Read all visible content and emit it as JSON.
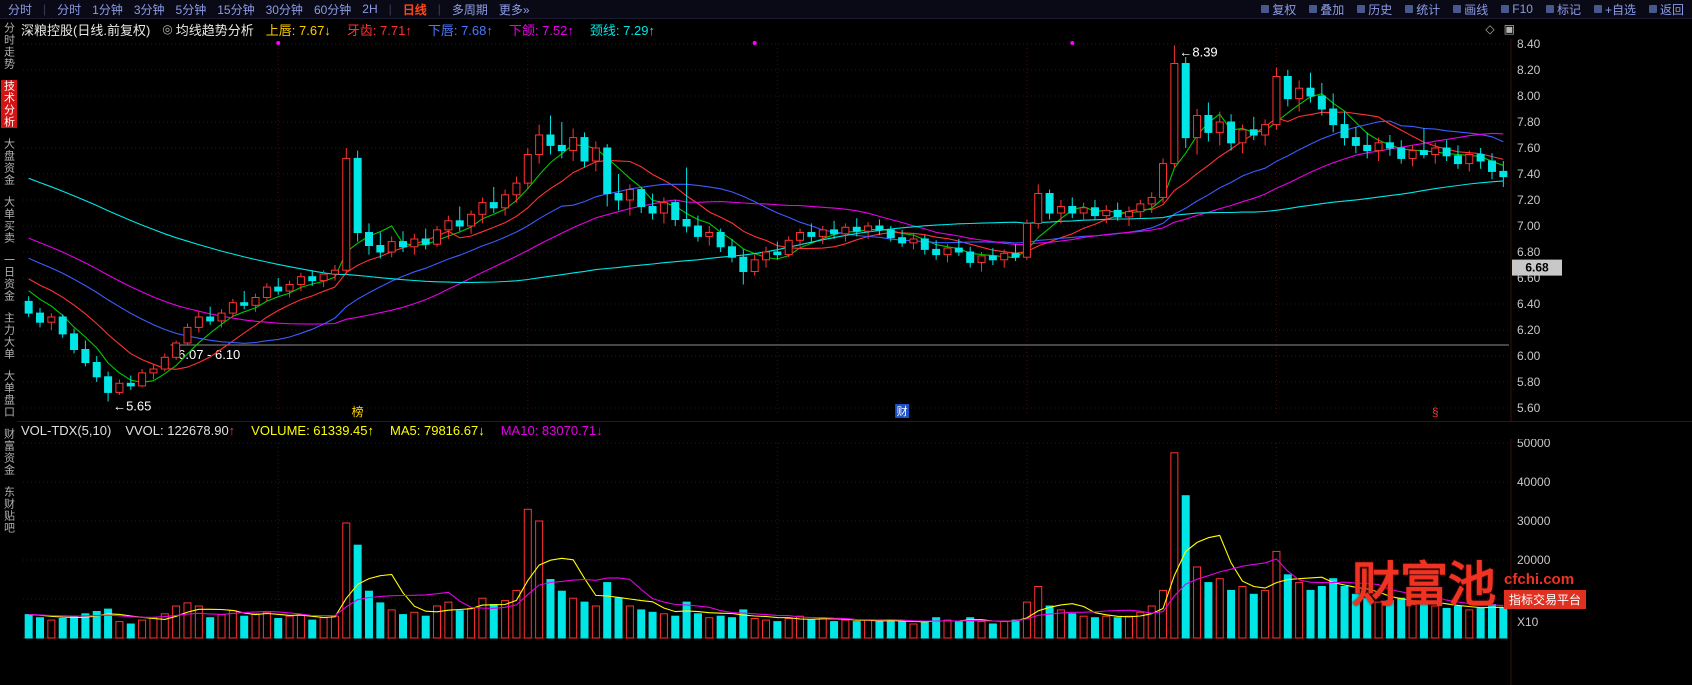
{
  "topbar": {
    "periods": [
      {
        "label": "分时",
        "sep_after": true
      },
      {
        "label": "分时"
      },
      {
        "label": "1分钟"
      },
      {
        "label": "3分钟"
      },
      {
        "label": "5分钟"
      },
      {
        "label": "15分钟"
      },
      {
        "label": "30分钟"
      },
      {
        "label": "60分钟"
      },
      {
        "label": "2H",
        "sep_after": true
      },
      {
        "label": "日线",
        "active": true,
        "sep_after": true
      },
      {
        "label": "多周期"
      },
      {
        "label": "更多»"
      }
    ],
    "actions": [
      "复权",
      "叠加",
      "历史",
      "统计",
      "画线",
      "F10",
      "标记",
      "+自选",
      "返回"
    ]
  },
  "sidebar": {
    "items": [
      {
        "label": "分时走势"
      },
      {
        "label": "技术分析",
        "active": true
      },
      {
        "label": "大盘资金"
      },
      {
        "label": "大单买卖"
      },
      {
        "label": "一日资金"
      },
      {
        "label": "主力大单"
      },
      {
        "label": "大单盘口"
      },
      {
        "label": "财富资金"
      },
      {
        "label": "东财贴吧"
      }
    ]
  },
  "chart_header": {
    "title": "深粮控股(日线.前复权)",
    "indicator_icon": "◎",
    "indicator_name": "均线趋势分析",
    "values": [
      {
        "label": "上唇:",
        "value": "7.67",
        "arrow": "↓",
        "color": "#ffcc00"
      },
      {
        "label": "牙齿:",
        "value": "7.71",
        "arrow": "↑",
        "color": "#ff3232"
      },
      {
        "label": "下唇:",
        "value": "7.68",
        "arrow": "↑",
        "color": "#4d79ff"
      },
      {
        "label": "下颌:",
        "value": "7.52",
        "arrow": "↑",
        "color": "#e600e6"
      },
      {
        "label": "颈线:",
        "value": "7.29",
        "arrow": "↑",
        "color": "#00e6e6"
      }
    ],
    "corner_icons": [
      "◇",
      "▣"
    ]
  },
  "volume_header": {
    "name": "VOL-TDX(5,10)",
    "values": [
      {
        "label": "VVOL:",
        "value": "122678.90",
        "arrow": "↑",
        "color": "#e0e0e0",
        "arrow_color": "#ff3232"
      },
      {
        "label": "VOLUME:",
        "value": "61339.45",
        "arrow": "↑",
        "color": "#ffff00"
      },
      {
        "label": "MA5:",
        "value": "79816.67",
        "arrow": "↓",
        "color": "#ffff00"
      },
      {
        "label": "MA10:",
        "value": "83070.71",
        "arrow": "↓",
        "color": "#e600e6"
      }
    ]
  },
  "watermark": {
    "brand": "财富池",
    "site": "cfchi.com",
    "tagline": "指标交易平台"
  },
  "chart_data": {
    "type": "candlestick+volume",
    "title": "深粮控股 日线 前复权",
    "price_axis": {
      "min": 5.6,
      "max": 8.4,
      "step": 0.2
    },
    "volume_axis": {
      "max": 50000,
      "step": 10000,
      "unit": "X10"
    },
    "colors": {
      "up": "#ff3232",
      "down": "#00e6e6",
      "grid": "#3c1212",
      "axis_text": "#c8c8c8",
      "level_line": "#8c8c8c",
      "badge_bg": "#c8c8c8",
      "badge_text": "#000000"
    },
    "price_mas": [
      {
        "window": 5,
        "color": "#00c800"
      },
      {
        "window": 10,
        "color": "#ff3232"
      },
      {
        "window": 20,
        "color": "#3c5cff"
      },
      {
        "window": 30,
        "color": "#e600e6"
      },
      {
        "window": 60,
        "color": "#00e6e6"
      }
    ],
    "vol_mas": [
      {
        "window": 5,
        "color": "#ffff00"
      },
      {
        "window": 10,
        "color": "#e600e6"
      }
    ],
    "ma_seed": {
      "start": 8.3,
      "end": 6.5,
      "days": 60
    },
    "vol_seed": 6000,
    "grid_day_interval": 22,
    "annotations": {
      "high": {
        "day": 101,
        "text": "←8.39"
      },
      "low": {
        "day": 7,
        "text": "←5.65"
      },
      "level_line": {
        "from_day": 13,
        "price": 6.085,
        "label": "6.07 - 6.10"
      },
      "price_badge": "6.68",
      "price_badge_value": 6.68
    },
    "event_markers": [
      {
        "day": 29,
        "label": "榜",
        "style": "yellow"
      },
      {
        "day": 77,
        "label": "财",
        "style": "blue-badge"
      },
      {
        "day": 124,
        "label": "§",
        "style": "red"
      }
    ],
    "top_dots": {
      "days": [
        22,
        64,
        92
      ],
      "color": "#ff00ff"
    },
    "candles": [
      [
        6.42,
        6.46,
        6.3,
        6.33
      ],
      [
        6.33,
        6.37,
        6.22,
        6.26
      ],
      [
        6.26,
        6.33,
        6.2,
        6.3
      ],
      [
        6.3,
        6.32,
        6.14,
        6.17
      ],
      [
        6.17,
        6.21,
        6.02,
        6.05
      ],
      [
        6.05,
        6.12,
        5.92,
        5.95
      ],
      [
        5.95,
        6.0,
        5.8,
        5.84
      ],
      [
        5.84,
        5.88,
        5.65,
        5.72
      ],
      [
        5.72,
        5.82,
        5.7,
        5.79
      ],
      [
        5.79,
        5.85,
        5.74,
        5.77
      ],
      [
        5.77,
        5.9,
        5.76,
        5.87
      ],
      [
        5.87,
        5.94,
        5.82,
        5.9
      ],
      [
        5.9,
        6.02,
        5.88,
        5.99
      ],
      [
        5.99,
        6.12,
        5.97,
        6.1
      ],
      [
        6.1,
        6.25,
        6.08,
        6.22
      ],
      [
        6.22,
        6.34,
        6.18,
        6.3
      ],
      [
        6.3,
        6.38,
        6.24,
        6.27
      ],
      [
        6.27,
        6.36,
        6.22,
        6.33
      ],
      [
        6.33,
        6.44,
        6.3,
        6.41
      ],
      [
        6.41,
        6.5,
        6.36,
        6.39
      ],
      [
        6.39,
        6.48,
        6.34,
        6.45
      ],
      [
        6.45,
        6.56,
        6.42,
        6.53
      ],
      [
        6.53,
        6.6,
        6.47,
        6.5
      ],
      [
        6.5,
        6.58,
        6.45,
        6.55
      ],
      [
        6.55,
        6.64,
        6.5,
        6.61
      ],
      [
        6.61,
        6.66,
        6.54,
        6.58
      ],
      [
        6.58,
        6.66,
        6.53,
        6.63
      ],
      [
        6.63,
        6.7,
        6.58,
        6.66
      ],
      [
        6.66,
        7.6,
        6.62,
        7.52
      ],
      [
        7.52,
        7.58,
        6.88,
        6.95
      ],
      [
        6.95,
        7.02,
        6.78,
        6.85
      ],
      [
        6.85,
        6.95,
        6.75,
        6.8
      ],
      [
        6.8,
        6.92,
        6.76,
        6.88
      ],
      [
        6.88,
        6.96,
        6.8,
        6.84
      ],
      [
        6.84,
        6.94,
        6.78,
        6.9
      ],
      [
        6.9,
        6.98,
        6.82,
        6.86
      ],
      [
        6.86,
        7.0,
        6.84,
        6.97
      ],
      [
        6.97,
        7.08,
        6.9,
        7.04
      ],
      [
        7.04,
        7.15,
        6.96,
        7.0
      ],
      [
        7.0,
        7.12,
        6.94,
        7.09
      ],
      [
        7.09,
        7.22,
        7.02,
        7.18
      ],
      [
        7.18,
        7.3,
        7.1,
        7.14
      ],
      [
        7.14,
        7.28,
        7.08,
        7.24
      ],
      [
        7.24,
        7.38,
        7.18,
        7.33
      ],
      [
        7.33,
        7.6,
        7.28,
        7.55
      ],
      [
        7.55,
        7.78,
        7.48,
        7.7
      ],
      [
        7.7,
        7.85,
        7.55,
        7.62
      ],
      [
        7.62,
        7.8,
        7.52,
        7.58
      ],
      [
        7.58,
        7.75,
        7.5,
        7.68
      ],
      [
        7.68,
        7.72,
        7.45,
        7.5
      ],
      [
        7.5,
        7.65,
        7.42,
        7.6
      ],
      [
        7.6,
        7.63,
        7.15,
        7.25
      ],
      [
        7.25,
        7.4,
        7.12,
        7.2
      ],
      [
        7.2,
        7.32,
        7.08,
        7.28
      ],
      [
        7.28,
        7.3,
        7.1,
        7.15
      ],
      [
        7.15,
        7.25,
        7.05,
        7.1
      ],
      [
        7.1,
        7.22,
        7.02,
        7.18
      ],
      [
        7.18,
        7.2,
        7.0,
        7.05
      ],
      [
        7.05,
        7.45,
        6.95,
        7.0
      ],
      [
        7.0,
        7.08,
        6.88,
        6.92
      ],
      [
        6.92,
        7.0,
        6.85,
        6.95
      ],
      [
        6.95,
        6.98,
        6.8,
        6.84
      ],
      [
        6.84,
        6.9,
        6.72,
        6.76
      ],
      [
        6.76,
        6.82,
        6.55,
        6.65
      ],
      [
        6.65,
        6.78,
        6.62,
        6.74
      ],
      [
        6.74,
        6.84,
        6.68,
        6.8
      ],
      [
        6.8,
        6.88,
        6.74,
        6.78
      ],
      [
        6.78,
        6.92,
        6.76,
        6.89
      ],
      [
        6.89,
        6.98,
        6.84,
        6.95
      ],
      [
        6.95,
        7.02,
        6.88,
        6.92
      ],
      [
        6.92,
        7.0,
        6.86,
        6.97
      ],
      [
        6.97,
        7.04,
        6.9,
        6.94
      ],
      [
        6.94,
        7.02,
        6.88,
        6.99
      ],
      [
        6.99,
        7.06,
        6.92,
        6.96
      ],
      [
        6.96,
        7.03,
        6.9,
        7.0
      ],
      [
        7.0,
        7.05,
        6.93,
        6.97
      ],
      [
        6.97,
        7.0,
        6.88,
        6.91
      ],
      [
        6.91,
        6.97,
        6.84,
        6.87
      ],
      [
        6.87,
        6.94,
        6.82,
        6.9
      ],
      [
        6.9,
        6.93,
        6.78,
        6.82
      ],
      [
        6.82,
        6.89,
        6.74,
        6.78
      ],
      [
        6.78,
        6.86,
        6.72,
        6.83
      ],
      [
        6.83,
        6.9,
        6.77,
        6.8
      ],
      [
        6.8,
        6.84,
        6.68,
        6.72
      ],
      [
        6.72,
        6.8,
        6.65,
        6.77
      ],
      [
        6.77,
        6.83,
        6.7,
        6.74
      ],
      [
        6.74,
        6.82,
        6.68,
        6.79
      ],
      [
        6.79,
        6.86,
        6.73,
        6.76
      ],
      [
        6.76,
        7.05,
        6.74,
        7.02
      ],
      [
        7.02,
        7.32,
        6.98,
        7.25
      ],
      [
        7.25,
        7.28,
        7.05,
        7.1
      ],
      [
        7.1,
        7.2,
        7.02,
        7.15
      ],
      [
        7.15,
        7.22,
        7.06,
        7.1
      ],
      [
        7.1,
        7.18,
        7.04,
        7.14
      ],
      [
        7.14,
        7.2,
        7.05,
        7.08
      ],
      [
        7.08,
        7.16,
        7.02,
        7.12
      ],
      [
        7.12,
        7.18,
        7.04,
        7.07
      ],
      [
        7.07,
        7.15,
        7.0,
        7.11
      ],
      [
        7.11,
        7.2,
        7.06,
        7.17
      ],
      [
        7.17,
        7.26,
        7.1,
        7.22
      ],
      [
        7.22,
        7.52,
        7.18,
        7.48
      ],
      [
        7.48,
        8.39,
        7.45,
        8.25
      ],
      [
        8.25,
        8.3,
        7.6,
        7.68
      ],
      [
        7.68,
        7.9,
        7.55,
        7.85
      ],
      [
        7.85,
        7.95,
        7.65,
        7.72
      ],
      [
        7.72,
        7.88,
        7.62,
        7.8
      ],
      [
        7.8,
        7.86,
        7.58,
        7.64
      ],
      [
        7.64,
        7.78,
        7.56,
        7.74
      ],
      [
        7.74,
        7.84,
        7.66,
        7.7
      ],
      [
        7.7,
        7.82,
        7.62,
        7.78
      ],
      [
        7.78,
        8.22,
        7.74,
        8.15
      ],
      [
        8.15,
        8.2,
        7.92,
        7.98
      ],
      [
        7.98,
        8.12,
        7.88,
        8.06
      ],
      [
        8.06,
        8.18,
        7.95,
        8.0
      ],
      [
        8.0,
        8.1,
        7.85,
        7.9
      ],
      [
        7.9,
        8.02,
        7.72,
        7.78
      ],
      [
        7.78,
        7.88,
        7.62,
        7.68
      ],
      [
        7.68,
        7.76,
        7.56,
        7.62
      ],
      [
        7.62,
        7.72,
        7.52,
        7.58
      ],
      [
        7.58,
        7.68,
        7.5,
        7.64
      ],
      [
        7.64,
        7.7,
        7.54,
        7.6
      ],
      [
        7.6,
        7.66,
        7.48,
        7.52
      ],
      [
        7.52,
        7.62,
        7.46,
        7.58
      ],
      [
        7.58,
        7.75,
        7.52,
        7.55
      ],
      [
        7.55,
        7.64,
        7.48,
        7.6
      ],
      [
        7.6,
        7.66,
        7.5,
        7.54
      ],
      [
        7.54,
        7.62,
        7.44,
        7.48
      ],
      [
        7.48,
        7.58,
        7.42,
        7.55
      ],
      [
        7.55,
        7.6,
        7.44,
        7.5
      ],
      [
        7.5,
        7.56,
        7.36,
        7.42
      ],
      [
        7.42,
        7.5,
        7.3,
        7.38
      ]
    ],
    "volumes": [
      6000,
      5200,
      4600,
      5000,
      5600,
      6200,
      6800,
      7400,
      4200,
      3600,
      4600,
      5200,
      6200,
      8200,
      9000,
      8200,
      5200,
      6000,
      7000,
      5600,
      6200,
      6600,
      5000,
      5600,
      6000,
      4600,
      5200,
      5600,
      29500,
      23800,
      12000,
      9000,
      7200,
      6000,
      6600,
      5600,
      8200,
      9200,
      7000,
      7600,
      10200,
      8600,
      9600,
      12200,
      33000,
      30000,
      15000,
      12000,
      10200,
      9200,
      8200,
      14200,
      10200,
      8200,
      7200,
      6600,
      6200,
      5600,
      9200,
      6200,
      5200,
      5600,
      5200,
      7200,
      5000,
      4600,
      4200,
      5000,
      5600,
      4600,
      5200,
      4200,
      4600,
      4200,
      4600,
      4200,
      4600,
      4200,
      3600,
      4200,
      5200,
      4600,
      4200,
      5200,
      4200,
      3600,
      4200,
      4600,
      9200,
      13200,
      8200,
      7200,
      6200,
      5600,
      5200,
      5600,
      5200,
      5600,
      6600,
      8200,
      12200,
      47500,
      36500,
      18200,
      14200,
      15200,
      12200,
      13200,
      11200,
      12200,
      22200,
      16200,
      14200,
      12200,
      13200,
      15200,
      13200,
      11200,
      10200,
      9200,
      9600,
      10200,
      8600,
      9200,
      8200,
      7600,
      8200,
      7200,
      7600,
      8600,
      7800
    ]
  }
}
